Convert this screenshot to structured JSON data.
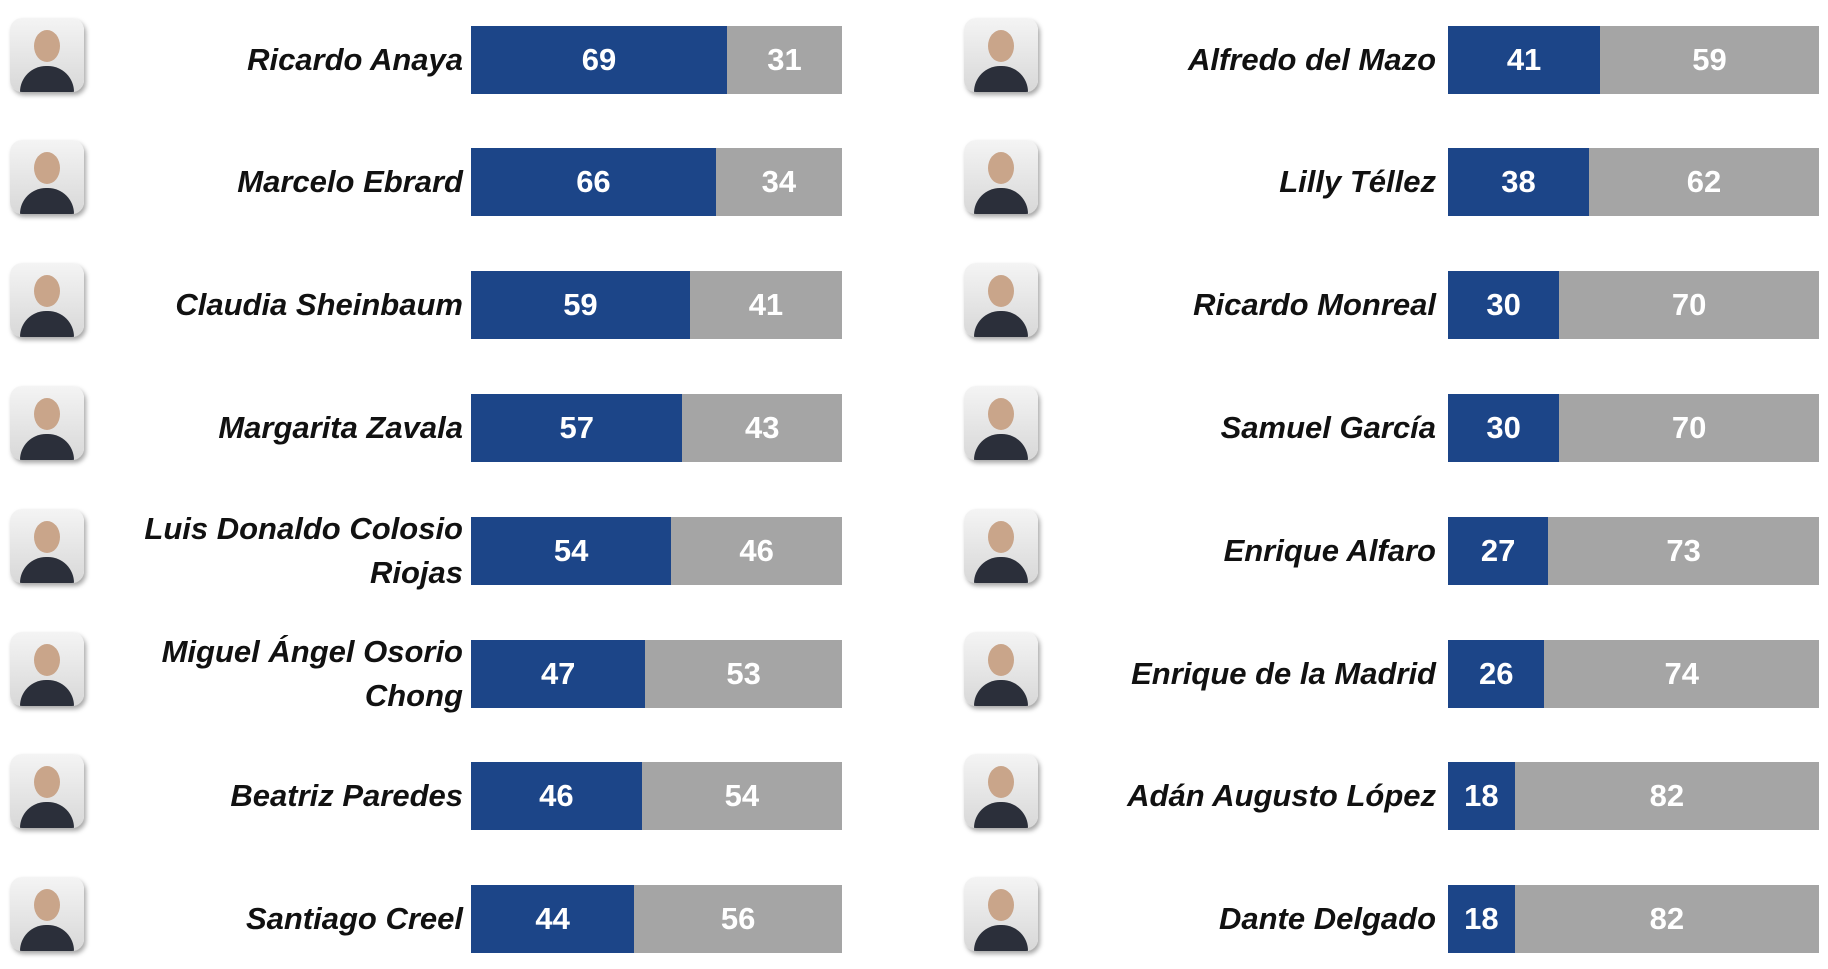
{
  "chart_data": [
    {
      "type": "bar",
      "orientation": "horizontal",
      "stacked": true,
      "categories": [
        "Ricardo Anaya",
        "Marcelo Ebrard",
        "Claudia Sheinbaum",
        "Margarita Zavala",
        "Luis Donaldo Colosio Riojas",
        "Miguel Ángel Osorio Chong",
        "Beatriz Paredes",
        "Santiago Creel"
      ],
      "series": [
        {
          "color": "#1c4588",
          "values": [
            69,
            66,
            59,
            57,
            54,
            47,
            46,
            44
          ]
        },
        {
          "color": "#a5a5a5",
          "values": [
            31,
            34,
            41,
            43,
            46,
            53,
            54,
            56
          ]
        }
      ],
      "xlim": [
        0,
        100
      ]
    },
    {
      "type": "bar",
      "orientation": "horizontal",
      "stacked": true,
      "categories": [
        "Alfredo del Mazo",
        "Lilly Téllez",
        "Ricardo Monreal",
        "Samuel García",
        "Enrique Alfaro",
        "Enrique de la Madrid",
        "Adán Augusto López",
        "Dante Delgado"
      ],
      "series": [
        {
          "color": "#1c4588",
          "values": [
            41,
            38,
            30,
            30,
            27,
            26,
            18,
            18
          ]
        },
        {
          "color": "#a5a5a5",
          "values": [
            59,
            62,
            70,
            70,
            73,
            74,
            82,
            82
          ]
        }
      ],
      "xlim": [
        0,
        100
      ]
    }
  ]
}
